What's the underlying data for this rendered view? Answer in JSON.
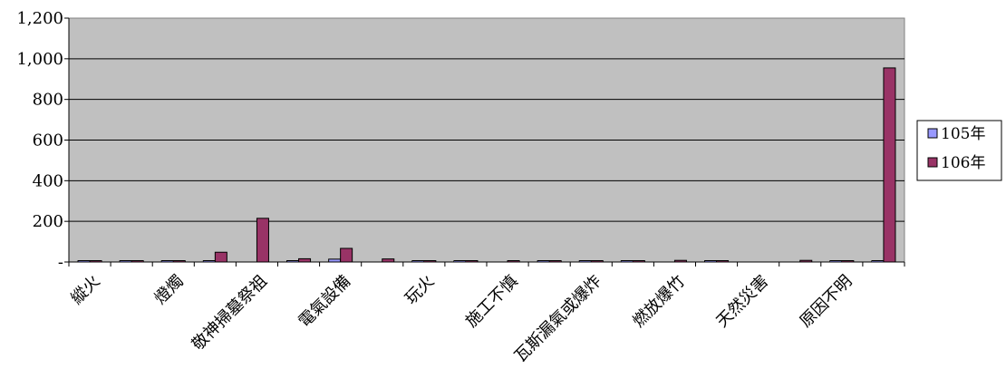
{
  "chart_data": {
    "type": "bar",
    "title": "",
    "xlabel": "",
    "ylabel": "",
    "ylim": [
      0,
      1200
    ],
    "yticks": [
      0,
      200,
      400,
      600,
      800,
      1000,
      1200
    ],
    "ytick_labels": [
      "-",
      "200",
      "400",
      "600",
      "800",
      "1,000",
      "1,200"
    ],
    "grid": true,
    "legend_position": "right",
    "plot_background": "#c0c0c0",
    "categories": [
      "縱火",
      "",
      "燈燭",
      "",
      "敬神掃墓祭祖",
      "",
      "電氣設備",
      "",
      "玩火",
      "",
      "施工不慎",
      "",
      "瓦斯漏氣或爆炸",
      "",
      "燃放爆竹",
      "",
      "天然災害",
      "",
      "原因不明",
      ""
    ],
    "series": [
      {
        "name": "105年",
        "color": "#9999ff",
        "values": [
          6,
          3,
          2,
          3,
          0,
          3,
          14,
          0,
          2,
          2,
          0,
          1,
          3,
          1,
          0,
          2,
          0,
          0,
          5,
          2
        ]
      },
      {
        "name": "106年",
        "color": "#993366",
        "values": [
          6,
          3,
          2,
          48,
          215,
          16,
          67,
          15,
          1,
          2,
          2,
          1,
          3,
          2,
          8,
          3,
          0,
          8,
          5,
          955
        ]
      }
    ]
  }
}
